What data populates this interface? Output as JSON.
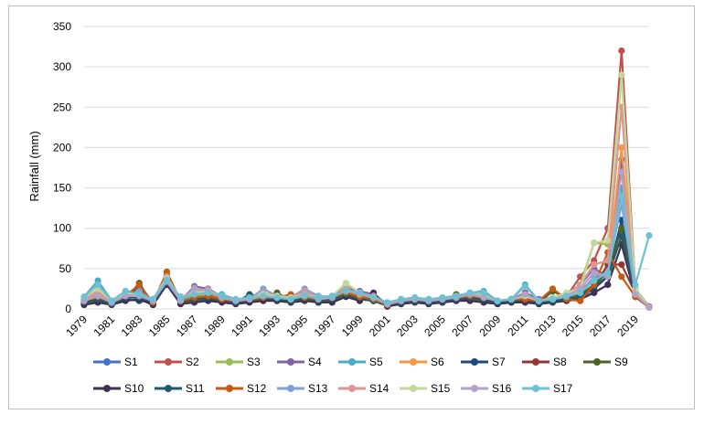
{
  "chart_data": {
    "type": "line",
    "ylabel": "Rainfall (mm)",
    "ylim": [
      0,
      350
    ],
    "yticks": [
      0,
      50,
      100,
      150,
      200,
      250,
      300,
      350
    ],
    "x": [
      1979,
      1980,
      1981,
      1982,
      1983,
      1984,
      1985,
      1986,
      1987,
      1988,
      1989,
      1990,
      1991,
      1992,
      1993,
      1994,
      1995,
      1996,
      1997,
      1998,
      1999,
      2000,
      2001,
      2002,
      2003,
      2004,
      2005,
      2006,
      2007,
      2008,
      2009,
      2010,
      2011,
      2012,
      2013,
      2014,
      2015,
      2016,
      2017,
      2018,
      2019,
      2020
    ],
    "xtick_labels": [
      "1979",
      "1981",
      "1983",
      "1985",
      "1987",
      "1989",
      "1991",
      "1993",
      "1995",
      "1997",
      "1999",
      "2001",
      "2003",
      "2005",
      "2007",
      "2009",
      "2011",
      "2013",
      "2015",
      "2017",
      "2019"
    ],
    "grid": "horizontal",
    "legend_position": "bottom",
    "series": [
      {
        "name": "S1",
        "color": "#4472C4",
        "values": [
          10,
          15,
          8,
          18,
          15,
          10,
          30,
          12,
          10,
          15,
          12,
          10,
          12,
          15,
          12,
          10,
          14,
          10,
          12,
          20,
          15,
          12,
          5,
          8,
          10,
          8,
          10,
          12,
          15,
          12,
          8,
          10,
          12,
          8,
          10,
          12,
          15,
          20,
          30,
          110,
          20,
          2
        ]
      },
      {
        "name": "S2",
        "color": "#C0504D",
        "values": [
          8,
          20,
          8,
          15,
          18,
          10,
          40,
          10,
          20,
          18,
          12,
          8,
          10,
          14,
          15,
          12,
          18,
          12,
          14,
          20,
          15,
          10,
          5,
          8,
          10,
          8,
          10,
          14,
          15,
          12,
          10,
          12,
          10,
          8,
          10,
          15,
          40,
          60,
          100,
          320,
          25,
          3
        ]
      },
      {
        "name": "S3",
        "color": "#9BBB59",
        "values": [
          12,
          25,
          10,
          18,
          20,
          12,
          35,
          12,
          15,
          20,
          15,
          10,
          12,
          16,
          15,
          12,
          15,
          12,
          14,
          30,
          20,
          12,
          6,
          10,
          12,
          10,
          12,
          14,
          18,
          15,
          10,
          12,
          15,
          10,
          12,
          15,
          30,
          82,
          80,
          290,
          20,
          2
        ]
      },
      {
        "name": "S4",
        "color": "#8064A2",
        "values": [
          10,
          18,
          8,
          16,
          18,
          10,
          35,
          10,
          28,
          25,
          15,
          10,
          12,
          18,
          16,
          14,
          20,
          14,
          15,
          25,
          22,
          18,
          6,
          10,
          12,
          10,
          12,
          15,
          18,
          14,
          10,
          12,
          20,
          12,
          14,
          18,
          30,
          50,
          40,
          185,
          18,
          2
        ]
      },
      {
        "name": "S5",
        "color": "#4BACC6",
        "values": [
          15,
          35,
          10,
          22,
          20,
          12,
          35,
          15,
          20,
          20,
          18,
          12,
          14,
          18,
          16,
          14,
          18,
          15,
          16,
          22,
          20,
          15,
          8,
          12,
          14,
          12,
          14,
          16,
          20,
          22,
          10,
          12,
          30,
          10,
          12,
          15,
          20,
          40,
          45,
          150,
          25,
          2
        ]
      },
      {
        "name": "S6",
        "color": "#F79646",
        "values": [
          12,
          22,
          8,
          18,
          16,
          10,
          38,
          12,
          18,
          20,
          14,
          10,
          12,
          16,
          14,
          12,
          16,
          12,
          14,
          22,
          18,
          12,
          6,
          10,
          12,
          10,
          12,
          14,
          16,
          14,
          10,
          12,
          14,
          10,
          12,
          15,
          25,
          35,
          50,
          200,
          20,
          2
        ]
      },
      {
        "name": "S7",
        "color": "#1F497D",
        "values": [
          8,
          10,
          6,
          12,
          10,
          8,
          30,
          8,
          10,
          12,
          10,
          8,
          10,
          12,
          10,
          8,
          12,
          8,
          10,
          18,
          12,
          10,
          4,
          8,
          10,
          8,
          8,
          10,
          12,
          10,
          8,
          10,
          10,
          8,
          10,
          12,
          15,
          25,
          40,
          110,
          15,
          2
        ]
      },
      {
        "name": "S8",
        "color": "#943634",
        "values": [
          8,
          12,
          6,
          14,
          28,
          6,
          42,
          10,
          12,
          15,
          12,
          8,
          10,
          14,
          12,
          10,
          14,
          10,
          12,
          18,
          14,
          10,
          5,
          8,
          10,
          8,
          10,
          12,
          14,
          12,
          8,
          10,
          12,
          8,
          12,
          14,
          12,
          28,
          55,
          55,
          20,
          2
        ]
      },
      {
        "name": "S9",
        "color": "#4F6228",
        "values": [
          6,
          10,
          6,
          12,
          32,
          5,
          38,
          8,
          10,
          14,
          10,
          8,
          10,
          12,
          20,
          10,
          12,
          10,
          10,
          16,
          12,
          10,
          4,
          8,
          10,
          8,
          10,
          18,
          12,
          10,
          8,
          10,
          12,
          8,
          22,
          14,
          18,
          30,
          45,
          100,
          18,
          2
        ]
      },
      {
        "name": "S10",
        "color": "#403152",
        "values": [
          5,
          8,
          5,
          10,
          12,
          5,
          30,
          6,
          8,
          10,
          8,
          6,
          8,
          10,
          10,
          8,
          10,
          8,
          8,
          15,
          10,
          20,
          3,
          6,
          8,
          6,
          8,
          10,
          10,
          8,
          6,
          8,
          8,
          6,
          8,
          10,
          12,
          20,
          30,
          80,
          15,
          2
        ]
      },
      {
        "name": "S11",
        "color": "#215968",
        "values": [
          8,
          12,
          6,
          14,
          14,
          8,
          32,
          10,
          12,
          14,
          12,
          8,
          18,
          14,
          12,
          10,
          14,
          10,
          12,
          18,
          14,
          10,
          5,
          8,
          10,
          8,
          10,
          12,
          14,
          12,
          8,
          10,
          12,
          8,
          10,
          12,
          15,
          28,
          40,
          90,
          18,
          2
        ]
      },
      {
        "name": "S12",
        "color": "#C55A11",
        "values": [
          10,
          15,
          8,
          16,
          30,
          8,
          46,
          10,
          14,
          16,
          12,
          10,
          12,
          14,
          14,
          18,
          14,
          12,
          14,
          20,
          15,
          12,
          5,
          10,
          12,
          10,
          12,
          14,
          16,
          14,
          10,
          12,
          12,
          10,
          25,
          12,
          10,
          30,
          70,
          40,
          15,
          2
        ]
      },
      {
        "name": "S13",
        "color": "#7FA1D6",
        "values": [
          10,
          18,
          8,
          16,
          22,
          10,
          35,
          12,
          18,
          22,
          14,
          10,
          12,
          25,
          16,
          14,
          25,
          16,
          14,
          24,
          18,
          14,
          6,
          10,
          12,
          10,
          12,
          14,
          18,
          16,
          10,
          12,
          16,
          10,
          12,
          15,
          20,
          40,
          45,
          130,
          18,
          2
        ]
      },
      {
        "name": "S14",
        "color": "#D99694",
        "values": [
          12,
          20,
          8,
          18,
          18,
          12,
          40,
          12,
          22,
          24,
          14,
          12,
          12,
          20,
          16,
          14,
          22,
          14,
          14,
          25,
          18,
          14,
          6,
          10,
          12,
          10,
          12,
          16,
          20,
          16,
          10,
          12,
          18,
          10,
          12,
          18,
          30,
          55,
          60,
          250,
          20,
          2
        ]
      },
      {
        "name": "S15",
        "color": "#C3D69B",
        "values": [
          14,
          25,
          10,
          20,
          18,
          12,
          38,
          14,
          20,
          22,
          16,
          12,
          14,
          18,
          16,
          14,
          18,
          14,
          16,
          32,
          20,
          14,
          8,
          12,
          14,
          12,
          14,
          16,
          20,
          18,
          10,
          12,
          16,
          10,
          14,
          20,
          25,
          82,
          85,
          290,
          25,
          2
        ]
      },
      {
        "name": "S16",
        "color": "#B3A2C7",
        "values": [
          10,
          16,
          8,
          16,
          16,
          10,
          34,
          10,
          26,
          22,
          14,
          10,
          12,
          16,
          14,
          12,
          18,
          12,
          14,
          24,
          20,
          16,
          6,
          10,
          12,
          10,
          12,
          14,
          18,
          14,
          10,
          12,
          18,
          10,
          12,
          16,
          25,
          45,
          40,
          170,
          18,
          2
        ]
      },
      {
        "name": "S17",
        "color": "#6FC0D3",
        "values": [
          15,
          30,
          10,
          22,
          18,
          12,
          36,
          14,
          18,
          20,
          16,
          12,
          14,
          16,
          14,
          12,
          16,
          14,
          16,
          22,
          20,
          14,
          8,
          12,
          14,
          12,
          14,
          16,
          20,
          20,
          10,
          12,
          28,
          10,
          12,
          16,
          20,
          35,
          45,
          140,
          30,
          91
        ]
      }
    ]
  }
}
